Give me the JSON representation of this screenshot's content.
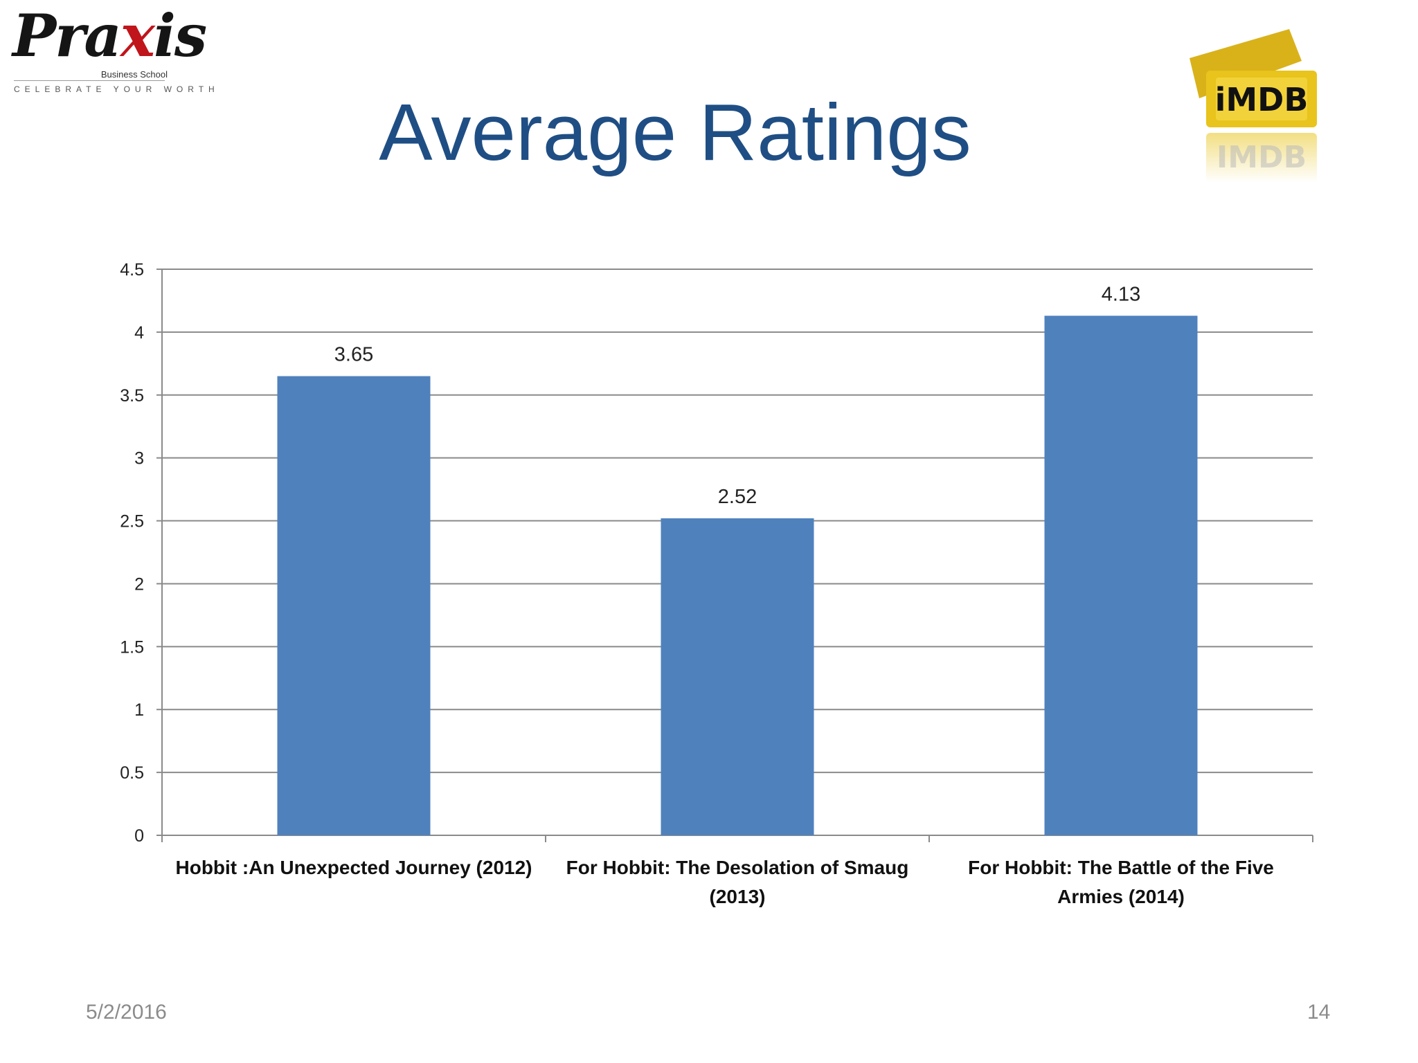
{
  "logo": {
    "praxis_word_a": "Pra",
    "praxis_word_x": "x",
    "praxis_word_b": "is",
    "praxis_sub": "Business School",
    "praxis_tagline": "CELEBRATE YOUR WORTH",
    "imdb_text": "iMDB",
    "imdb_reflection_text": "IMDB"
  },
  "slide": {
    "title": "Average Ratings",
    "date": "5/2/2016",
    "page_number": "14"
  },
  "colors": {
    "title": "#1f4e84",
    "bar": "#4f81bd",
    "gridline": "#8a8a8a",
    "imdb_gold": "#e8c41c"
  },
  "chart_data": {
    "type": "bar",
    "categories": [
      [
        "Hobbit :An Unexpected Journey (2012)"
      ],
      [
        "For Hobbit: The Desolation of Smaug",
        "(2013)"
      ],
      [
        "For Hobbit: The Battle of the Five",
        "Armies (2014)"
      ]
    ],
    "values": [
      3.65,
      2.52,
      4.13
    ],
    "data_labels": [
      "3.65",
      "2.52",
      "4.13"
    ],
    "yticks": [
      "0",
      "0.5",
      "1",
      "1.5",
      "2",
      "2.5",
      "3",
      "3.5",
      "4",
      "4.5"
    ],
    "ylim": [
      0,
      4.5
    ],
    "grid": true,
    "legend": false,
    "title": "",
    "xlabel": "",
    "ylabel": ""
  }
}
